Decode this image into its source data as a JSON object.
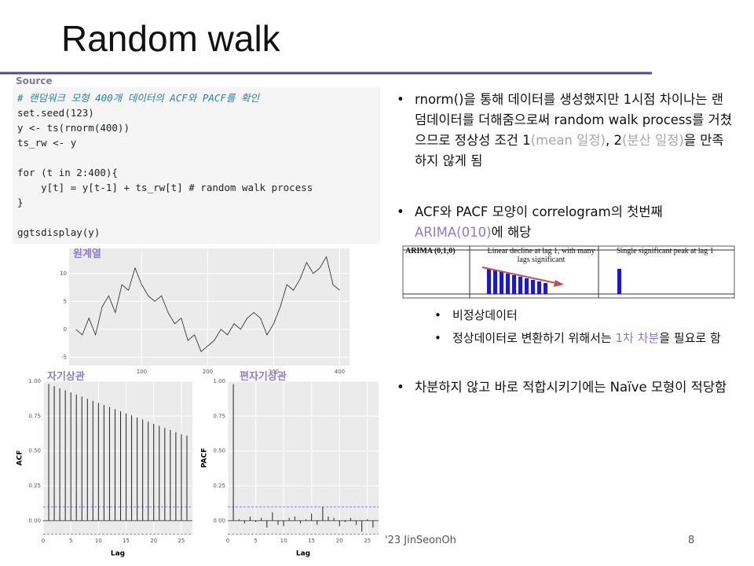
{
  "title": "Random walk",
  "source_label": "Source",
  "code": [
    [
      "# 랜덤워크 모형 400개 데이터의 ACF와 PACF를 확인",
      "set.seed(123)",
      "y <- ts(rnorm(400))",
      "ts_rw <- y"
    ],
    [
      "for (t in 2:400){",
      "    y[t] = y[t-1] + ts_rw[t] # random walk process",
      "}"
    ],
    [
      "ggtsdisplay(y)"
    ]
  ],
  "labels": {
    "series": "원계열",
    "acf": "자기상관",
    "pacf": "편자기상관"
  },
  "bullets": [
    {
      "segments": [
        "rnorm()을 통해 데이터를 생성했지만 1시점 차이나는 랜덤데이터를 더해줌으로써 random walk process를 거쳤으므로 정상성 조건 1",
        "(mean 일정)",
        ", 2",
        "(분산 일정)",
        "을 만족하지 않게 됨"
      ]
    },
    {
      "segments": [
        "ACF와 PACF 모양이 correlogram의 첫번째 ",
        "ARIMA(010)",
        "에 해당"
      ]
    },
    {
      "segments": [
        "차분하지 않고 바로 적합시키기에는 Naïve 모형이 적당함"
      ]
    }
  ],
  "sub_bullets": [
    {
      "segments": [
        "비정상데이터"
      ]
    },
    {
      "segments": [
        "정상데이터로 변환하기 위해서는 ",
        "1차 차분",
        "을 필요로 함"
      ]
    }
  ],
  "table_image": {
    "row_label": "ARIMA (0,1,0)",
    "acf_desc": "Linear decline at lag 1, with many lags significant",
    "pacf_desc": "Single significant peak at lag 1"
  },
  "footer": "'23 JinSeonOh",
  "page_number": "8",
  "chart_data": [
    {
      "type": "line",
      "color": "#222222",
      "x": [
        0,
        10,
        20,
        30,
        40,
        50,
        60,
        70,
        80,
        90,
        100,
        110,
        120,
        130,
        140,
        150,
        160,
        170,
        180,
        190,
        200,
        210,
        220,
        230,
        240,
        250,
        260,
        270,
        280,
        290,
        300,
        310,
        320,
        330,
        340,
        350,
        360,
        370,
        380,
        390,
        400
      ],
      "values": [
        0,
        -1,
        2,
        -1,
        4,
        6,
        3,
        8,
        7,
        11,
        8,
        6,
        5,
        6,
        3,
        1,
        2,
        -2,
        -1,
        -4,
        -3,
        -2,
        0,
        -1,
        1,
        0,
        2,
        3,
        2,
        -1,
        1,
        4,
        8,
        7,
        9,
        12,
        10,
        11,
        13,
        8,
        7
      ],
      "xlim": [
        -10,
        415
      ],
      "ylim": [
        -6.5,
        14.5
      ],
      "xticks": [
        100,
        200,
        300,
        400
      ],
      "yticks": [
        -5,
        0,
        5,
        10
      ],
      "grid": true
    },
    {
      "type": "bar",
      "color": "#222222",
      "ci_color": "#8080ff",
      "ci": 0.098,
      "x": [
        1,
        2,
        3,
        4,
        5,
        6,
        7,
        8,
        9,
        10,
        11,
        12,
        13,
        14,
        15,
        16,
        17,
        18,
        19,
        20,
        21,
        22,
        23,
        24,
        25,
        26
      ],
      "values": [
        0.98,
        0.965,
        0.95,
        0.935,
        0.92,
        0.905,
        0.89,
        0.875,
        0.86,
        0.845,
        0.83,
        0.815,
        0.8,
        0.785,
        0.77,
        0.755,
        0.74,
        0.725,
        0.71,
        0.695,
        0.68,
        0.665,
        0.65,
        0.635,
        0.62,
        0.61
      ],
      "xlim": [
        0,
        27
      ],
      "ylim": [
        -0.1,
        1.0
      ],
      "xticks": [
        0,
        5,
        10,
        15,
        20,
        25
      ],
      "yticks": [
        {
          "value": 0,
          "label": "0.00"
        },
        {
          "value": 0.25,
          "label": "0.25"
        },
        {
          "value": 0.5,
          "label": "0.50"
        },
        {
          "value": 0.75,
          "label": "0.75"
        },
        {
          "value": 1,
          "label": "1.00"
        }
      ],
      "xlabel": "Lag",
      "ylabel": "ACF",
      "grid": true
    },
    {
      "type": "bar",
      "color": "#222222",
      "ci_color": "#8080ff",
      "ci": 0.098,
      "x": [
        1,
        2,
        3,
        4,
        5,
        6,
        7,
        8,
        9,
        10,
        11,
        12,
        13,
        14,
        15,
        16,
        17,
        18,
        19,
        20,
        21,
        22,
        23,
        24,
        25,
        26
      ],
      "values": [
        0.98,
        0.01,
        -0.02,
        0.03,
        -0.01,
        0.02,
        -0.05,
        0.06,
        -0.03,
        -0.04,
        0.02,
        0.03,
        -0.02,
        0.01,
        0.05,
        -0.03,
        0.1,
        0.03,
        0.02,
        -0.04,
        -0.01,
        0.02,
        -0.03,
        -0.08,
        0.01,
        -0.05
      ],
      "xlim": [
        0,
        27
      ],
      "ylim": [
        -0.1,
        1.0
      ],
      "xticks": [
        0,
        5,
        10,
        15,
        20,
        25
      ],
      "yticks": [
        {
          "value": 0,
          "label": "0.00"
        },
        {
          "value": 0.25,
          "label": "0.25"
        },
        {
          "value": 0.5,
          "label": "0.50"
        },
        {
          "value": 0.75,
          "label": "0.75"
        },
        {
          "value": 1,
          "label": "1.00"
        }
      ],
      "xlabel": "Lag",
      "ylabel": "PACF",
      "grid": true
    }
  ]
}
